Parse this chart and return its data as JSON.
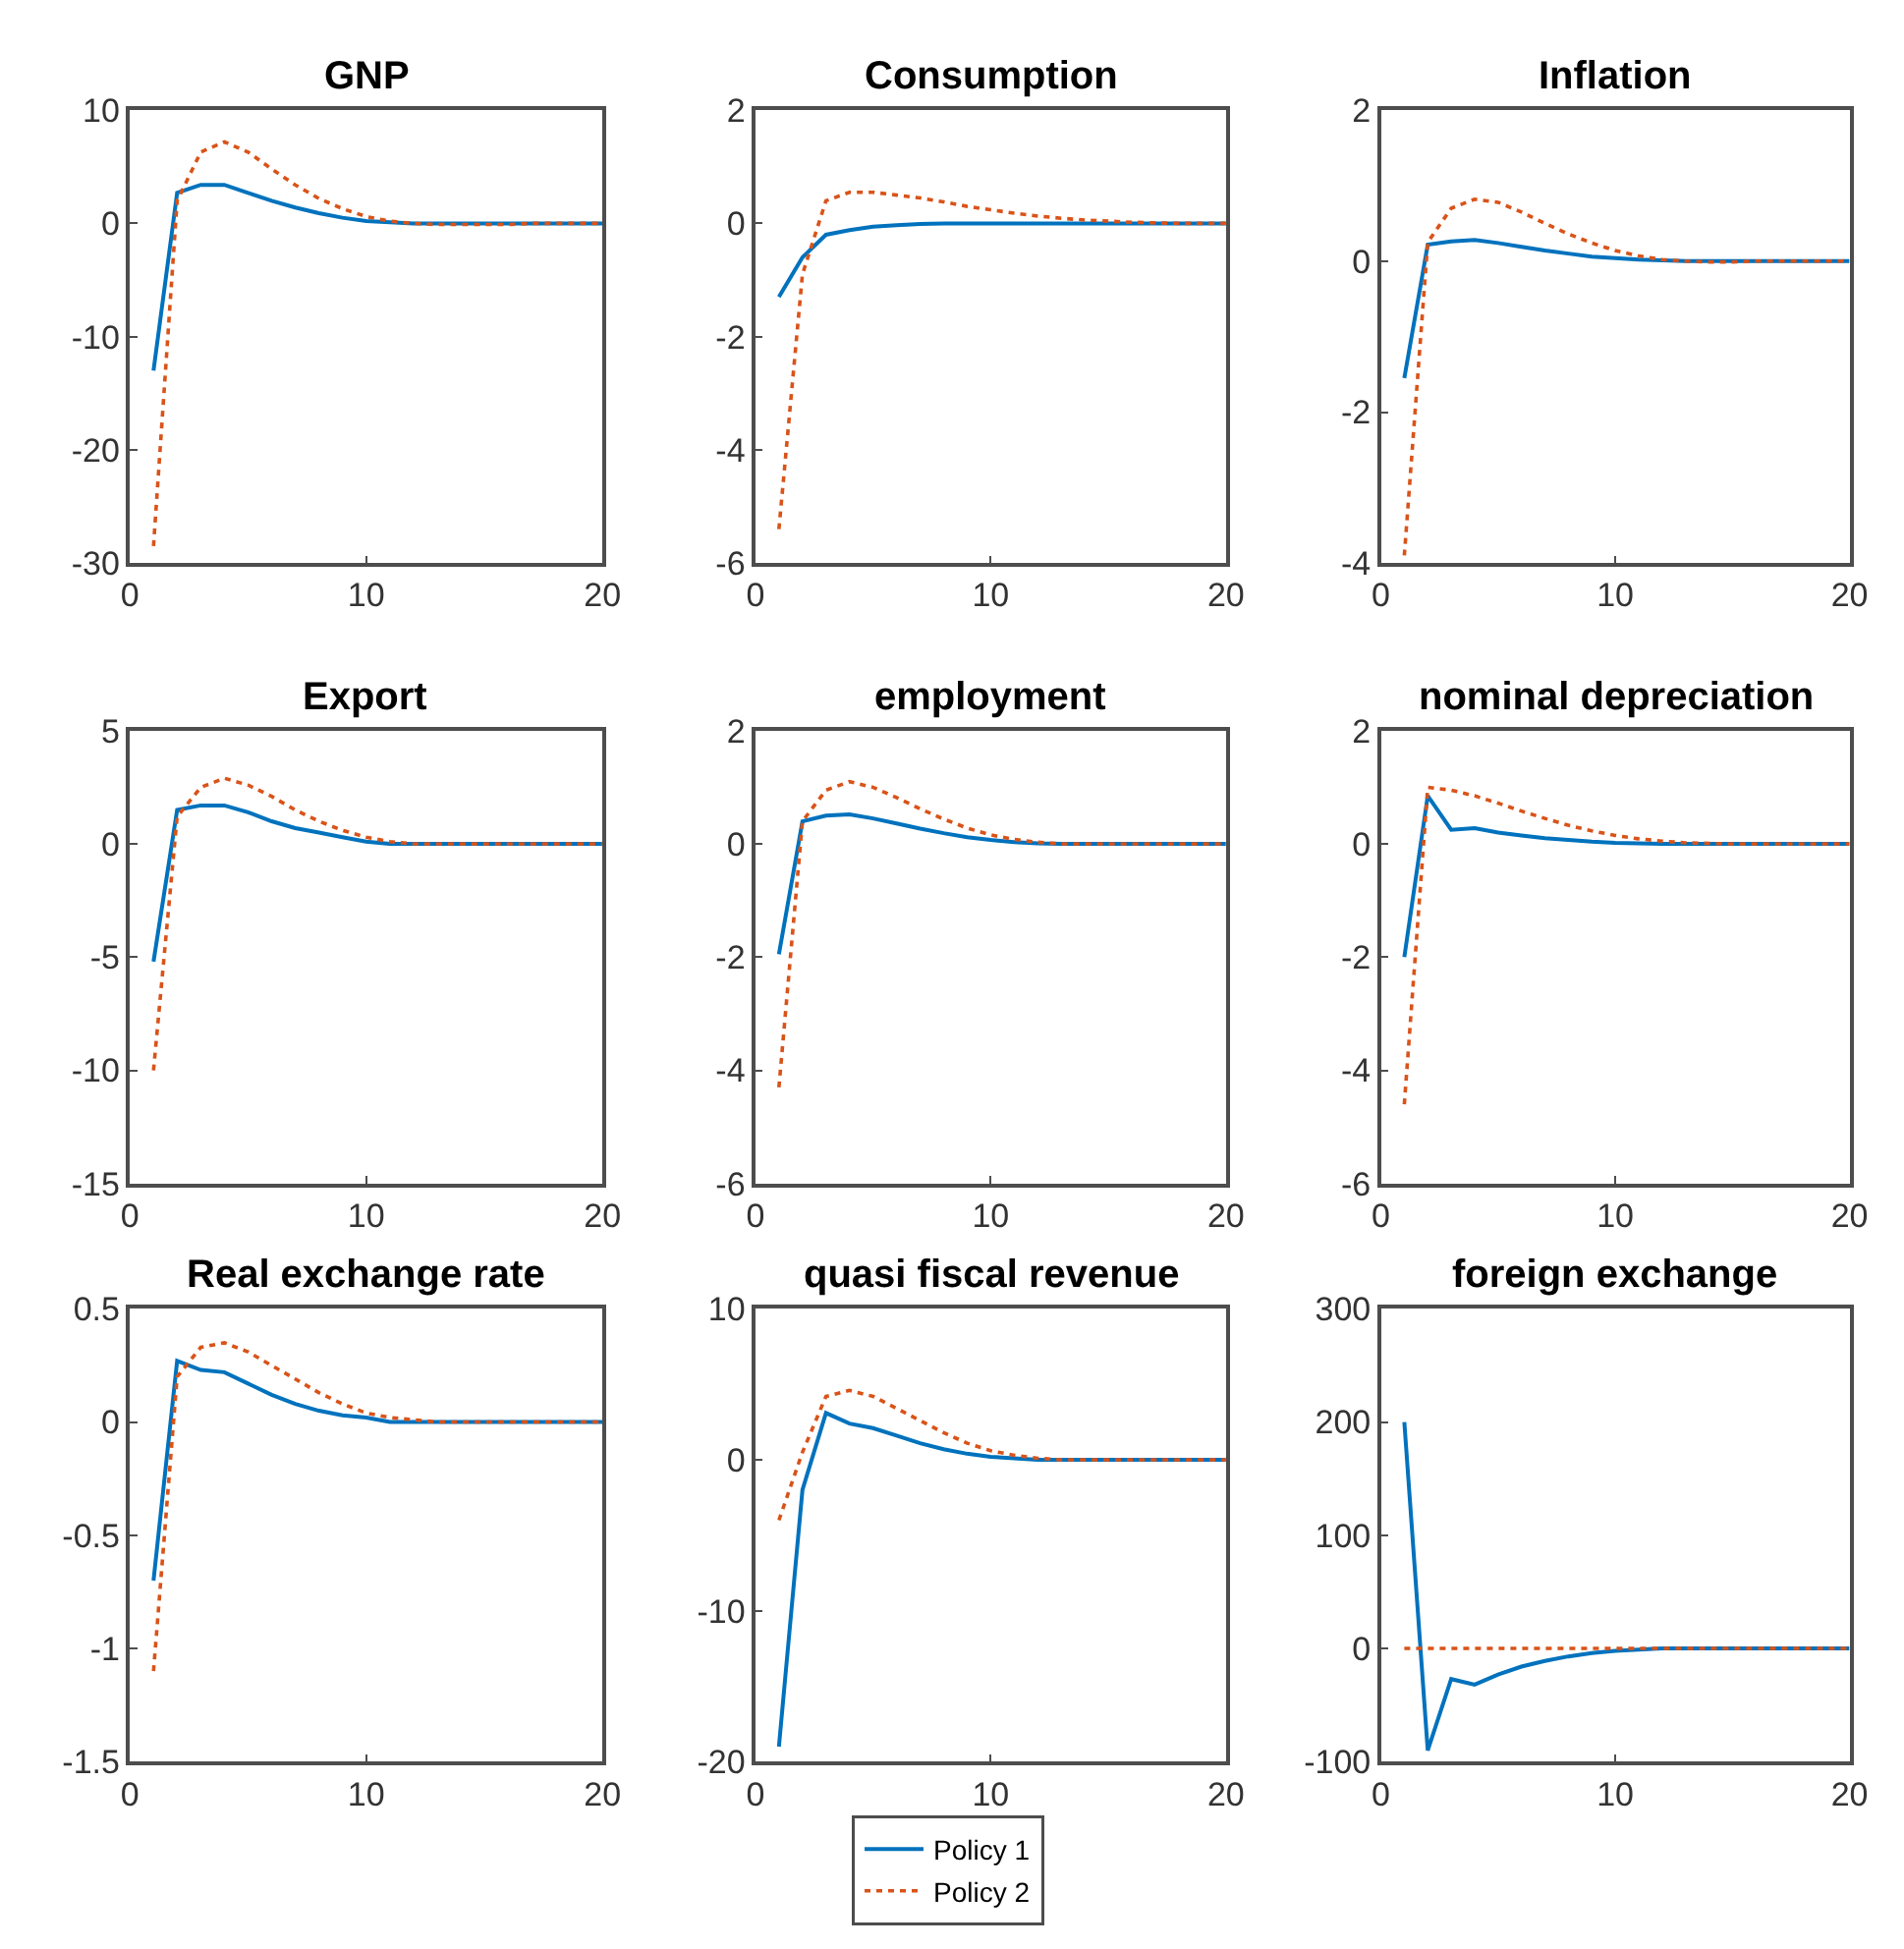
{
  "chart_data": [
    {
      "type": "line",
      "title": "GNP",
      "x": [
        1,
        2,
        3,
        4,
        5,
        6,
        7,
        8,
        9,
        10,
        11,
        12,
        13,
        14,
        15,
        16,
        17,
        18,
        19,
        20
      ],
      "xlim": [
        0,
        20
      ],
      "xticks": [
        0,
        10,
        20
      ],
      "ylim": [
        -30,
        10
      ],
      "yticks": [
        -30,
        -20,
        -10,
        0,
        10
      ],
      "legend": "bottom",
      "series": [
        {
          "name": "Policy 1",
          "color": "#0072bd",
          "line_style": "solid",
          "values": [
            -13,
            2.7,
            3.4,
            3.4,
            2.7,
            2.0,
            1.4,
            0.9,
            0.5,
            0.2,
            0.1,
            0,
            0,
            0,
            0,
            0,
            0,
            0,
            0,
            0
          ]
        },
        {
          "name": "Policy 2",
          "color": "#d95319",
          "line_style": "dotted",
          "values": [
            -28.5,
            2,
            6.3,
            7.2,
            6.3,
            4.8,
            3.4,
            2.2,
            1.3,
            0.6,
            0.2,
            0,
            -0.1,
            -0.1,
            -0.1,
            -0.1,
            0,
            0,
            0,
            0
          ]
        }
      ]
    },
    {
      "type": "line",
      "title": "Consumption",
      "x": [
        1,
        2,
        3,
        4,
        5,
        6,
        7,
        8,
        9,
        10,
        11,
        12,
        13,
        14,
        15,
        16,
        17,
        18,
        19,
        20
      ],
      "xlim": [
        0,
        20
      ],
      "xticks": [
        0,
        10,
        20
      ],
      "ylim": [
        -6,
        2
      ],
      "yticks": [
        -6,
        -4,
        -2,
        0,
        2
      ],
      "series": [
        {
          "color": "#0072bd",
          "line_style": "solid",
          "values": [
            -1.3,
            -0.6,
            -0.2,
            -0.12,
            -0.06,
            -0.03,
            -0.01,
            0,
            0,
            0,
            0,
            0,
            0,
            0,
            0,
            0,
            0,
            0,
            0,
            0
          ]
        },
        {
          "color": "#d95319",
          "line_style": "dotted",
          "values": [
            -5.4,
            -0.9,
            0.4,
            0.55,
            0.55,
            0.5,
            0.45,
            0.38,
            0.3,
            0.24,
            0.18,
            0.13,
            0.09,
            0.06,
            0.04,
            0.02,
            0.01,
            0,
            0,
            0
          ]
        }
      ]
    },
    {
      "type": "line",
      "title": "Inflation",
      "x": [
        1,
        2,
        3,
        4,
        5,
        6,
        7,
        8,
        9,
        10,
        11,
        12,
        13,
        14,
        15,
        16,
        17,
        18,
        19,
        20
      ],
      "xlim": [
        0,
        20
      ],
      "xticks": [
        0,
        10,
        20
      ],
      "ylim": [
        -4,
        2
      ],
      "yticks": [
        -4,
        -2,
        0,
        2
      ],
      "series": [
        {
          "color": "#0072bd",
          "line_style": "solid",
          "values": [
            -1.55,
            0.22,
            0.26,
            0.28,
            0.24,
            0.19,
            0.14,
            0.1,
            0.06,
            0.04,
            0.02,
            0.01,
            0,
            0,
            0,
            0,
            0,
            0,
            0,
            0
          ]
        },
        {
          "color": "#d95319",
          "line_style": "dotted",
          "values": [
            -3.9,
            0.25,
            0.7,
            0.82,
            0.78,
            0.65,
            0.5,
            0.36,
            0.24,
            0.14,
            0.07,
            0.02,
            0,
            -0.01,
            -0.01,
            0,
            0,
            0,
            0,
            0
          ]
        }
      ]
    },
    {
      "type": "line",
      "title": "Export",
      "x": [
        1,
        2,
        3,
        4,
        5,
        6,
        7,
        8,
        9,
        10,
        11,
        12,
        13,
        14,
        15,
        16,
        17,
        18,
        19,
        20
      ],
      "xlim": [
        0,
        20
      ],
      "xticks": [
        0,
        10,
        20
      ],
      "ylim": [
        -15,
        5
      ],
      "yticks": [
        -15,
        -10,
        -5,
        0,
        5
      ],
      "series": [
        {
          "color": "#0072bd",
          "line_style": "solid",
          "values": [
            -5.2,
            1.5,
            1.7,
            1.7,
            1.4,
            1.0,
            0.7,
            0.5,
            0.3,
            0.1,
            0,
            0,
            0,
            0,
            0,
            0,
            0,
            0,
            0,
            0
          ]
        },
        {
          "color": "#d95319",
          "line_style": "dotted",
          "values": [
            -10,
            1.2,
            2.5,
            2.9,
            2.6,
            2.1,
            1.5,
            1.0,
            0.6,
            0.3,
            0.1,
            0,
            0,
            0,
            0,
            0,
            0,
            0,
            0,
            0
          ]
        }
      ]
    },
    {
      "type": "line",
      "title": "employment",
      "x": [
        1,
        2,
        3,
        4,
        5,
        6,
        7,
        8,
        9,
        10,
        11,
        12,
        13,
        14,
        15,
        16,
        17,
        18,
        19,
        20
      ],
      "xlim": [
        0,
        20
      ],
      "xticks": [
        0,
        10,
        20
      ],
      "ylim": [
        -6,
        2
      ],
      "yticks": [
        -6,
        -4,
        -2,
        0,
        2
      ],
      "series": [
        {
          "color": "#0072bd",
          "line_style": "solid",
          "values": [
            -1.95,
            0.4,
            0.5,
            0.52,
            0.45,
            0.36,
            0.27,
            0.19,
            0.12,
            0.07,
            0.03,
            0.01,
            0,
            0,
            0,
            0,
            0,
            0,
            0,
            0
          ]
        },
        {
          "color": "#d95319",
          "line_style": "dotted",
          "values": [
            -4.3,
            0.4,
            0.95,
            1.1,
            1.0,
            0.82,
            0.62,
            0.44,
            0.28,
            0.16,
            0.08,
            0.03,
            0,
            0,
            0,
            0,
            0,
            0,
            0,
            0
          ]
        }
      ]
    },
    {
      "type": "line",
      "title": "nominal depreciation",
      "x": [
        1,
        2,
        3,
        4,
        5,
        6,
        7,
        8,
        9,
        10,
        11,
        12,
        13,
        14,
        15,
        16,
        17,
        18,
        19,
        20
      ],
      "xlim": [
        0,
        20
      ],
      "xticks": [
        0,
        10,
        20
      ],
      "ylim": [
        -6,
        2
      ],
      "yticks": [
        -6,
        -4,
        -2,
        0,
        2
      ],
      "series": [
        {
          "color": "#0072bd",
          "line_style": "solid",
          "values": [
            -2.0,
            0.85,
            0.25,
            0.28,
            0.2,
            0.15,
            0.1,
            0.07,
            0.04,
            0.02,
            0.01,
            0,
            0,
            0,
            0,
            0,
            0,
            0,
            0,
            0
          ]
        },
        {
          "color": "#d95319",
          "line_style": "dotted",
          "values": [
            -4.6,
            1.0,
            0.95,
            0.85,
            0.72,
            0.58,
            0.45,
            0.33,
            0.23,
            0.15,
            0.09,
            0.05,
            0.02,
            0.01,
            0,
            0,
            0,
            0,
            0,
            0
          ]
        }
      ]
    },
    {
      "type": "line",
      "title": "Real exchange rate",
      "x": [
        1,
        2,
        3,
        4,
        5,
        6,
        7,
        8,
        9,
        10,
        11,
        12,
        13,
        14,
        15,
        16,
        17,
        18,
        19,
        20
      ],
      "xlim": [
        0,
        20
      ],
      "xticks": [
        0,
        10,
        20
      ],
      "ylim": [
        -1.5,
        0.5
      ],
      "yticks": [
        -1.5,
        -1,
        -0.5,
        0,
        0.5
      ],
      "series": [
        {
          "color": "#0072bd",
          "line_style": "solid",
          "values": [
            -0.7,
            0.27,
            0.23,
            0.22,
            0.17,
            0.12,
            0.08,
            0.05,
            0.03,
            0.02,
            0,
            0,
            0,
            0,
            0,
            0,
            0,
            0,
            0,
            0
          ]
        },
        {
          "color": "#d95319",
          "line_style": "dotted",
          "values": [
            -1.1,
            0.2,
            0.33,
            0.35,
            0.31,
            0.25,
            0.19,
            0.13,
            0.08,
            0.04,
            0.02,
            0.01,
            0,
            0,
            0,
            0,
            0,
            0,
            0,
            0
          ]
        }
      ]
    },
    {
      "type": "line",
      "title": "quasi fiscal revenue",
      "x": [
        1,
        2,
        3,
        4,
        5,
        6,
        7,
        8,
        9,
        10,
        11,
        12,
        13,
        14,
        15,
        16,
        17,
        18,
        19,
        20
      ],
      "xlim": [
        0,
        20
      ],
      "xticks": [
        0,
        10,
        20
      ],
      "ylim": [
        -20,
        10
      ],
      "yticks": [
        -20,
        -10,
        0,
        10
      ],
      "series": [
        {
          "color": "#0072bd",
          "line_style": "solid",
          "values": [
            -19,
            -2,
            3.1,
            2.4,
            2.1,
            1.6,
            1.1,
            0.7,
            0.4,
            0.2,
            0.1,
            0,
            0,
            0,
            0,
            0,
            0,
            0,
            0,
            0
          ]
        },
        {
          "color": "#d95319",
          "line_style": "dotted",
          "values": [
            -4,
            0.5,
            4.2,
            4.6,
            4.2,
            3.4,
            2.6,
            1.8,
            1.1,
            0.6,
            0.3,
            0.1,
            0,
            0,
            0,
            0,
            0,
            0,
            0,
            0
          ]
        }
      ]
    },
    {
      "type": "line",
      "title": "foreign exchange",
      "x": [
        1,
        2,
        3,
        4,
        5,
        6,
        7,
        8,
        9,
        10,
        11,
        12,
        13,
        14,
        15,
        16,
        17,
        18,
        19,
        20
      ],
      "xlim": [
        0,
        20
      ],
      "xticks": [
        0,
        10,
        20
      ],
      "ylim": [
        -100,
        300
      ],
      "yticks": [
        -100,
        0,
        100,
        200,
        300
      ],
      "series": [
        {
          "color": "#0072bd",
          "line_style": "solid",
          "values": [
            200,
            -90,
            -27,
            -32,
            -23,
            -16,
            -11,
            -7,
            -4,
            -2,
            -1,
            0,
            0,
            0,
            0,
            0,
            0,
            0,
            0,
            0
          ]
        },
        {
          "color": "#d95319",
          "line_style": "dotted",
          "values": [
            0,
            0,
            0,
            0,
            0,
            0,
            0,
            0,
            0,
            0,
            0,
            0,
            0,
            0,
            0,
            0,
            0,
            0,
            0,
            0
          ]
        }
      ]
    }
  ]
}
